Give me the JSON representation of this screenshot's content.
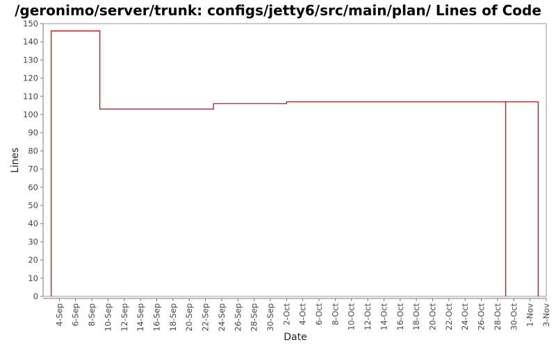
{
  "chart_data": {
    "type": "line",
    "step": true,
    "title": "/geronimo/server/trunk: configs/jetty6/src/main/plan/ Lines of Code",
    "xlabel": "Date",
    "ylabel": "Lines",
    "ylim": [
      0,
      150
    ],
    "y_ticks": [
      0,
      10,
      20,
      30,
      40,
      50,
      60,
      70,
      80,
      90,
      100,
      110,
      120,
      130,
      140,
      150
    ],
    "x_range": [
      "2007-09-02",
      "2007-11-03"
    ],
    "x_ticks": [
      {
        "date": "2007-09-04",
        "label": "4-Sep"
      },
      {
        "date": "2007-09-06",
        "label": "6-Sep"
      },
      {
        "date": "2007-09-08",
        "label": "8-Sep"
      },
      {
        "date": "2007-09-10",
        "label": "10-Sep"
      },
      {
        "date": "2007-09-12",
        "label": "12-Sep"
      },
      {
        "date": "2007-09-14",
        "label": "14-Sep"
      },
      {
        "date": "2007-09-16",
        "label": "16-Sep"
      },
      {
        "date": "2007-09-18",
        "label": "18-Sep"
      },
      {
        "date": "2007-09-20",
        "label": "20-Sep"
      },
      {
        "date": "2007-09-22",
        "label": "22-Sep"
      },
      {
        "date": "2007-09-24",
        "label": "24-Sep"
      },
      {
        "date": "2007-09-26",
        "label": "26-Sep"
      },
      {
        "date": "2007-09-28",
        "label": "28-Sep"
      },
      {
        "date": "2007-09-30",
        "label": "30-Sep"
      },
      {
        "date": "2007-10-02",
        "label": "2-Oct"
      },
      {
        "date": "2007-10-04",
        "label": "4-Oct"
      },
      {
        "date": "2007-10-06",
        "label": "6-Oct"
      },
      {
        "date": "2007-10-08",
        "label": "8-Oct"
      },
      {
        "date": "2007-10-10",
        "label": "10-Oct"
      },
      {
        "date": "2007-10-12",
        "label": "12-Oct"
      },
      {
        "date": "2007-10-14",
        "label": "14-Oct"
      },
      {
        "date": "2007-10-16",
        "label": "16-Oct"
      },
      {
        "date": "2007-10-18",
        "label": "18-Oct"
      },
      {
        "date": "2007-10-20",
        "label": "20-Oct"
      },
      {
        "date": "2007-10-22",
        "label": "22-Oct"
      },
      {
        "date": "2007-10-24",
        "label": "24-Oct"
      },
      {
        "date": "2007-10-26",
        "label": "26-Oct"
      },
      {
        "date": "2007-10-28",
        "label": "28-Oct"
      },
      {
        "date": "2007-10-30",
        "label": "30-Oct"
      },
      {
        "date": "2007-11-01",
        "label": "1-Nov"
      },
      {
        "date": "2007-11-03",
        "label": "3-Nov"
      }
    ],
    "series": [
      {
        "color": "#cc0000",
        "points": [
          {
            "x": "2007-09-03",
            "y": 0
          },
          {
            "x": "2007-09-03",
            "y": 146
          },
          {
            "x": "2007-09-09",
            "y": 146
          },
          {
            "x": "2007-09-09",
            "y": 103
          },
          {
            "x": "2007-09-23",
            "y": 103
          },
          {
            "x": "2007-09-23",
            "y": 106
          },
          {
            "x": "2007-10-02",
            "y": 106
          },
          {
            "x": "2007-10-02",
            "y": 107
          },
          {
            "x": "2007-10-29",
            "y": 107
          },
          {
            "x": "2007-10-29",
            "y": 0
          },
          {
            "x": "2007-10-29",
            "y": 107
          },
          {
            "x": "2007-11-02",
            "y": 107
          },
          {
            "x": "2007-11-02",
            "y": 0
          }
        ]
      }
    ],
    "grid": false,
    "legend": "none"
  }
}
